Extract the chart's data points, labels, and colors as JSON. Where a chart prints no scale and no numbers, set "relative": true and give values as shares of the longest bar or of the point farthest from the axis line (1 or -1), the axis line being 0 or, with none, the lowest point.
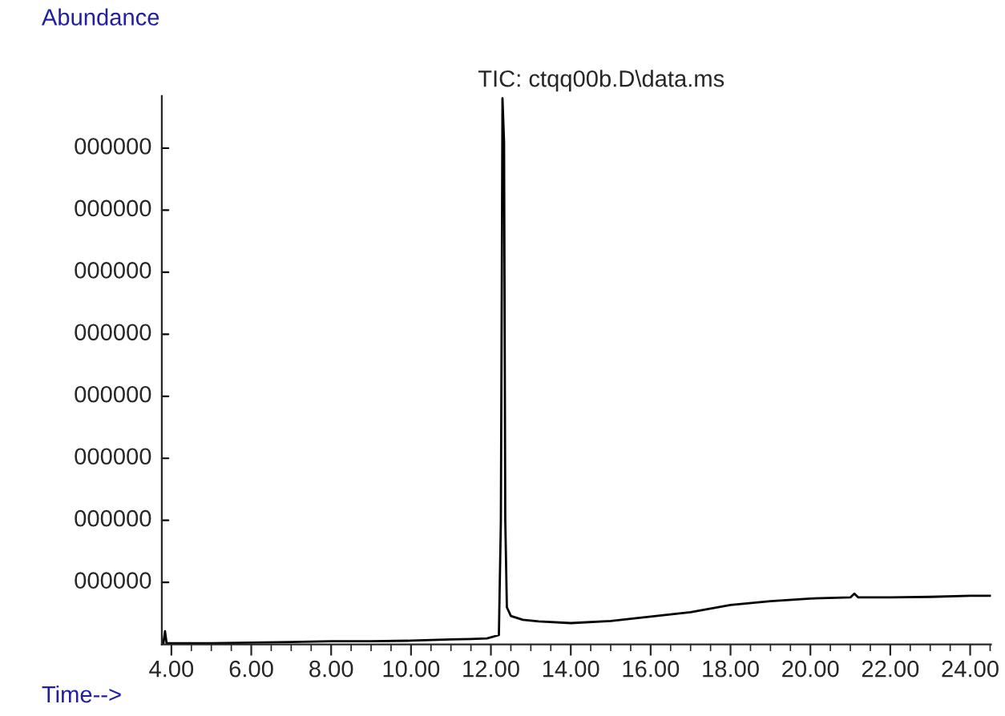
{
  "chart_data": {
    "type": "line",
    "title": "TIC: ctqq00b.D\\data.ms",
    "xlabel": "Time-->",
    "ylabel": "Abundance",
    "relative": true,
    "annotations": [
      "000000",
      "000000",
      "000000",
      "000000",
      "000000",
      "000000",
      "000000",
      "000000"
    ],
    "x": [
      3.76,
      3.8,
      3.84,
      3.88,
      4.0,
      5.0,
      6.0,
      7.0,
      8.0,
      9.0,
      10.0,
      10.5,
      11.0,
      11.5,
      11.9,
      12.2,
      12.25,
      12.29,
      12.33,
      12.36,
      12.4,
      12.5,
      12.8,
      13.2,
      14.0,
      15.0,
      16.0,
      17.0,
      18.0,
      19.0,
      20.0,
      21.0,
      21.1,
      21.2,
      22.0,
      23.0,
      24.0,
      24.52
    ],
    "series": [
      {
        "color": "#000000",
        "values": [
          0.0023,
          0.0023,
          0.024,
          0.0023,
          0.0023,
          0.0023,
          0.0034,
          0.0045,
          0.0057,
          0.0057,
          0.0068,
          0.008,
          0.009,
          0.01,
          0.011,
          0.017,
          0.227,
          1,
          0.919,
          0.227,
          0.068,
          0.052,
          0.045,
          0.042,
          0.039,
          0.043,
          0.051,
          0.059,
          0.072,
          0.079,
          0.084,
          0.086,
          0.093,
          0.086,
          0.086,
          0.087,
          0.089,
          0.089
        ]
      }
    ],
    "xlim": [
      3.76,
      24.52
    ],
    "xticks": [
      {
        "value": 4,
        "label": "4.00"
      },
      {
        "value": 6,
        "label": "6.00"
      },
      {
        "value": 8,
        "label": "8.00"
      },
      {
        "value": 10,
        "label": "10.00"
      },
      {
        "value": 12,
        "label": "12.00"
      },
      {
        "value": 14,
        "label": "14.00"
      },
      {
        "value": 16,
        "label": "16.00"
      },
      {
        "value": 18,
        "label": "18.00"
      },
      {
        "value": 20,
        "label": "20.00"
      },
      {
        "value": 22,
        "label": "22.00"
      },
      {
        "value": 24,
        "label": "24.00"
      }
    ],
    "grid": false,
    "marker": "none",
    "line_style": "solid"
  }
}
